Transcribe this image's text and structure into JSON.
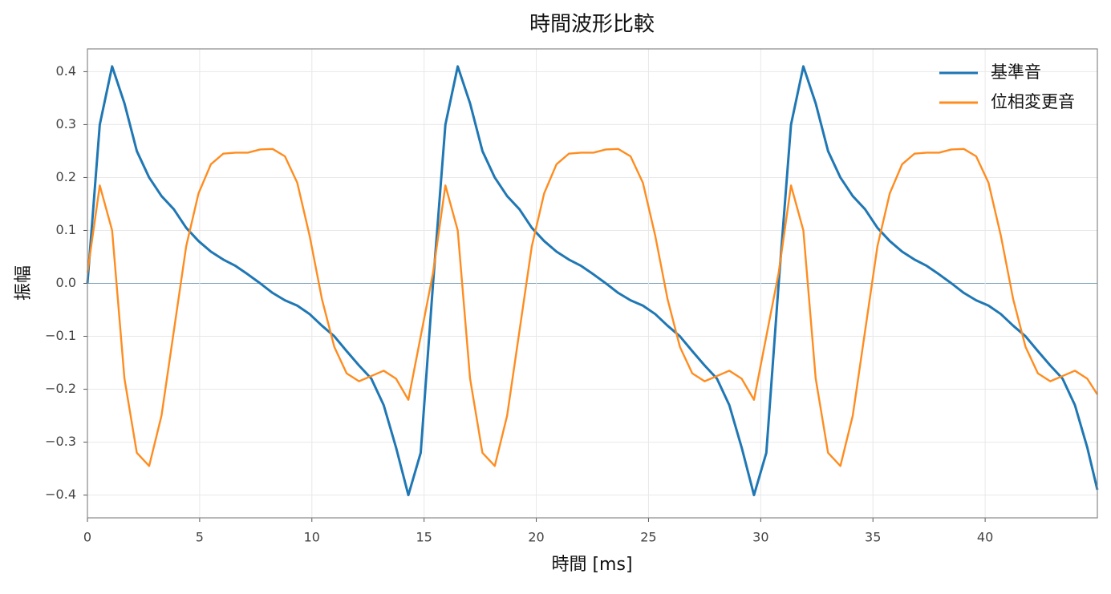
{
  "chart_data": {
    "type": "line",
    "title": "時間波形比較",
    "x_label": "時間 [ms]",
    "y_label": "振幅",
    "x": [
      0,
      0.55,
      1.1,
      1.65,
      2.2,
      2.75,
      3.3,
      3.85,
      4.4,
      4.95,
      5.5,
      6.05,
      6.6,
      7.15,
      7.7,
      8.25,
      8.8,
      9.35,
      9.9,
      10.45,
      11,
      11.55,
      12.1,
      12.65,
      13.2,
      13.75,
      14.3,
      14.85,
      15.4,
      15.95,
      16.5,
      17.05,
      17.6,
      18.15,
      18.7,
      19.25,
      19.8,
      20.35,
      20.9,
      21.45,
      22,
      22.55,
      23.1,
      23.65,
      24.2,
      24.75,
      25.3,
      25.85,
      26.4,
      26.95,
      27.5,
      28.05,
      28.6,
      29.15,
      29.7,
      30.25,
      30.8,
      31.35,
      31.9,
      32.45,
      33,
      33.55,
      34.1,
      34.65,
      35.2,
      35.75,
      36.3,
      36.85,
      37.4,
      37.95,
      38.5,
      39.05,
      39.6,
      40.15,
      40.7,
      41.25,
      41.8,
      42.35,
      42.9,
      43.45,
      44,
      44.55,
      45
    ],
    "series": [
      {
        "name": "基準音",
        "color": "#1f77b4",
        "values": [
          0,
          0.3,
          0.41,
          0.34,
          0.25,
          0.2,
          0.165,
          0.14,
          0.105,
          0.08,
          0.06,
          0.045,
          0.033,
          0.017,
          0,
          -0.018,
          -0.032,
          -0.042,
          -0.058,
          -0.08,
          -0.1,
          -0.128,
          -0.155,
          -0.18,
          -0.23,
          -0.31,
          -0.4,
          -0.32,
          0,
          0.3,
          0.41,
          0.34,
          0.25,
          0.2,
          0.165,
          0.14,
          0.105,
          0.08,
          0.06,
          0.045,
          0.033,
          0.017,
          0,
          -0.018,
          -0.032,
          -0.042,
          -0.058,
          -0.08,
          -0.1,
          -0.128,
          -0.155,
          -0.18,
          -0.23,
          -0.31,
          -0.4,
          -0.32,
          0,
          0.3,
          0.41,
          0.34,
          0.25,
          0.2,
          0.165,
          0.14,
          0.105,
          0.08,
          0.06,
          0.045,
          0.033,
          0.017,
          0,
          -0.018,
          -0.032,
          -0.042,
          -0.058,
          -0.08,
          -0.1,
          -0.128,
          -0.155,
          -0.18,
          -0.23,
          -0.31,
          -0.39
        ]
      },
      {
        "name": "位相変更音",
        "color": "#ff8c1f",
        "values": [
          0.02,
          0.185,
          0.1,
          -0.18,
          -0.32,
          -0.345,
          -0.25,
          -0.09,
          0.07,
          0.17,
          0.225,
          0.245,
          0.247,
          0.247,
          0.253,
          0.254,
          0.24,
          0.19,
          0.09,
          -0.03,
          -0.12,
          -0.17,
          -0.185,
          -0.175,
          -0.165,
          -0.18,
          -0.22,
          -0.1,
          0.02,
          0.185,
          0.1,
          -0.18,
          -0.32,
          -0.345,
          -0.25,
          -0.09,
          0.07,
          0.17,
          0.225,
          0.245,
          0.247,
          0.247,
          0.253,
          0.254,
          0.24,
          0.19,
          0.09,
          -0.03,
          -0.12,
          -0.17,
          -0.185,
          -0.175,
          -0.165,
          -0.18,
          -0.22,
          -0.1,
          0.02,
          0.185,
          0.1,
          -0.18,
          -0.32,
          -0.345,
          -0.25,
          -0.09,
          0.07,
          0.17,
          0.225,
          0.245,
          0.247,
          0.247,
          0.253,
          0.254,
          0.24,
          0.19,
          0.09,
          -0.03,
          -0.12,
          -0.17,
          -0.185,
          -0.175,
          -0.165,
          -0.18,
          -0.21
        ]
      }
    ],
    "xlim": [
      0,
      45
    ],
    "xticks": [
      0,
      5,
      10,
      15,
      20,
      25,
      30,
      35,
      40
    ],
    "ylim": [
      -0.443,
      0.443
    ],
    "yticks": [
      {
        "value": -0.4,
        "label": "−0.4"
      },
      {
        "value": -0.3,
        "label": "−0.3"
      },
      {
        "value": -0.2,
        "label": "−0.2"
      },
      {
        "value": -0.1,
        "label": "−0.1"
      },
      {
        "value": 0,
        "label": "0.0"
      },
      0.1,
      0.2,
      0.3,
      0.4
    ],
    "grid": true,
    "legend": "upper right"
  }
}
